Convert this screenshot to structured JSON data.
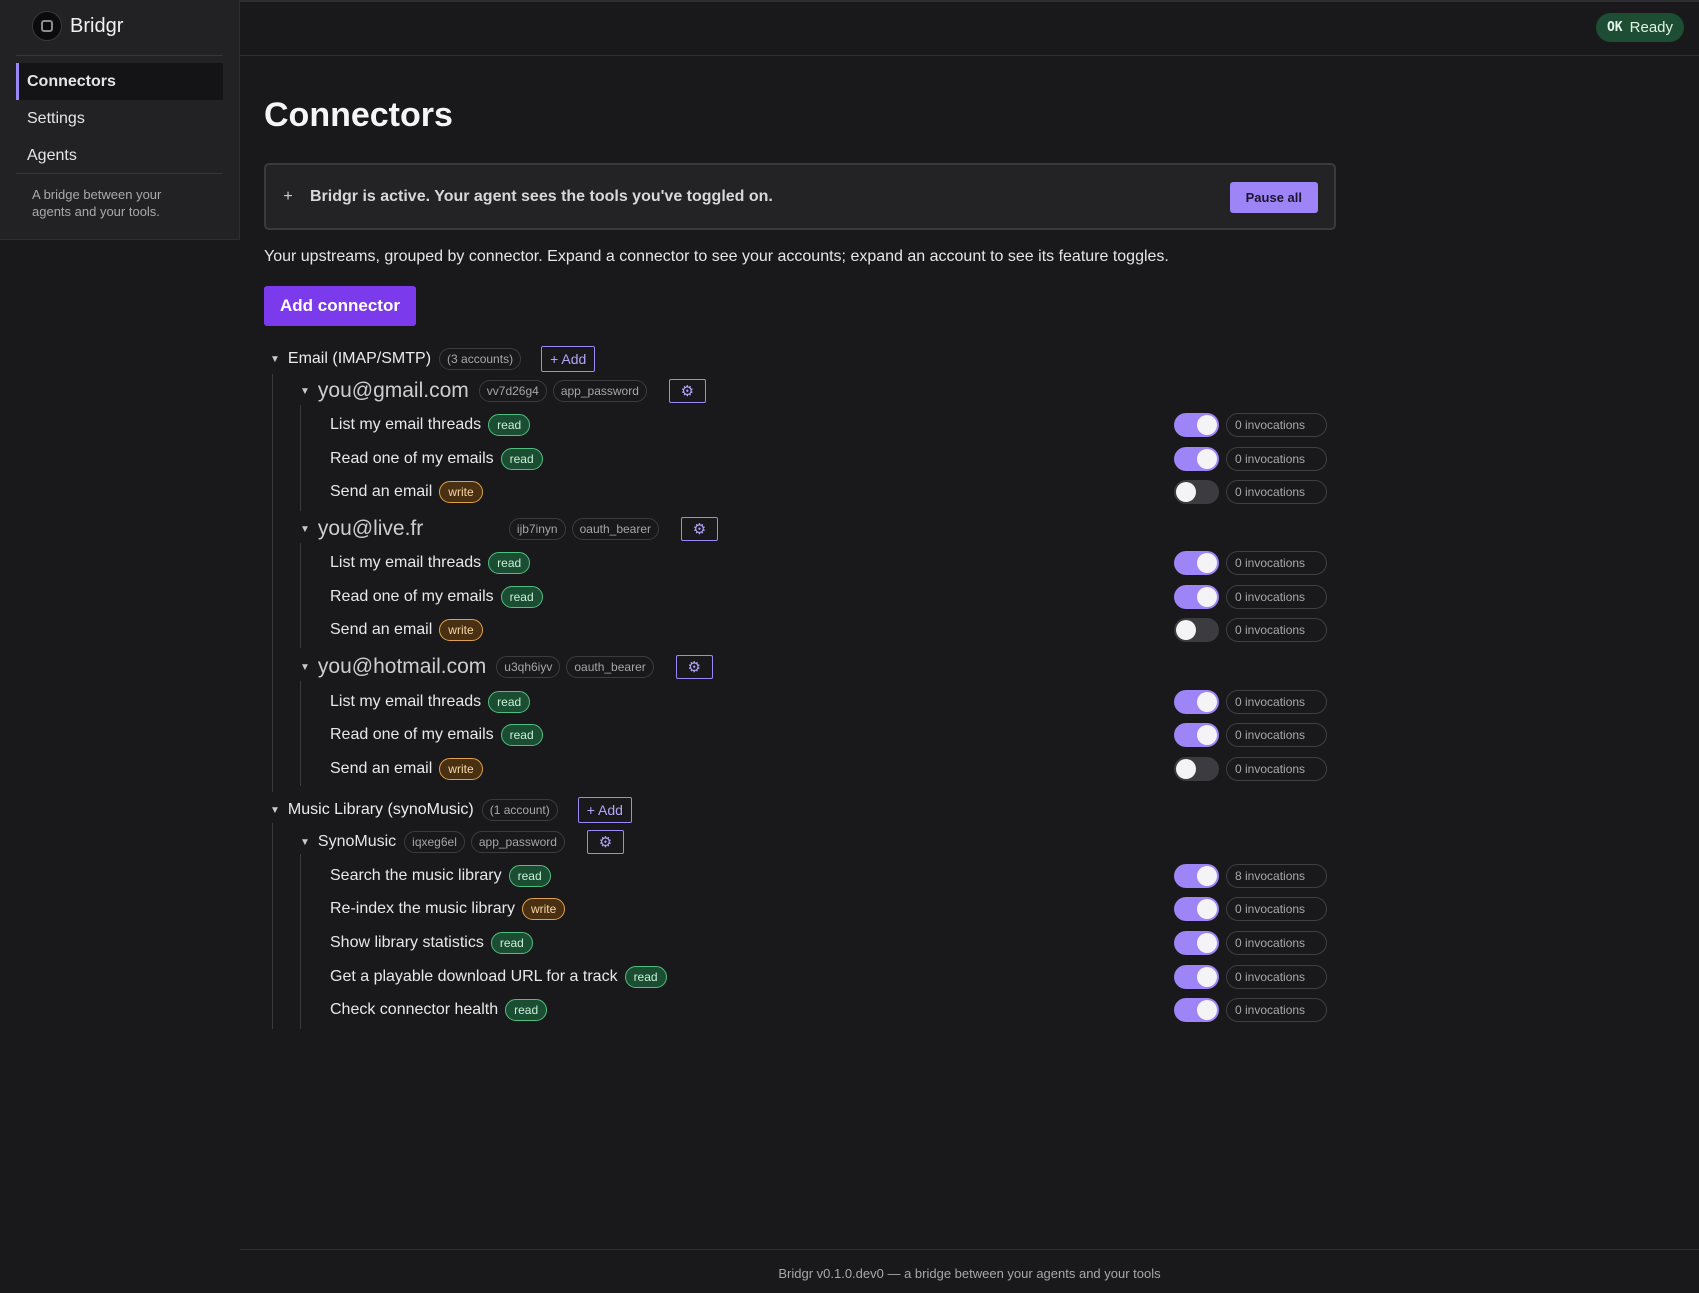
{
  "app": {
    "name": "Bridgr"
  },
  "sidebar": {
    "items": [
      {
        "label": "Connectors",
        "active": true
      },
      {
        "label": "Settings",
        "active": false
      },
      {
        "label": "Agents",
        "active": false
      }
    ],
    "tagline": "A bridge between your agents and your tools."
  },
  "status": {
    "ok": "OK",
    "label": "Ready"
  },
  "main": {
    "title": "Connectors",
    "banner": {
      "icon": "+",
      "text": "Bridgr is active. Your agent sees the tools you've toggled on.",
      "button": "Pause all"
    },
    "intro": "Your upstreams, grouped by connector. Expand a connector to see your accounts; expand an account to see its feature toggles.",
    "add_connector": "Add connector"
  },
  "connectors": [
    {
      "label": "Email (IMAP/SMTP)",
      "count": "(3 accounts)",
      "add": "+ Add",
      "accounts": [
        {
          "label": "you@gmail.com",
          "id": "vv7d26g4",
          "auth": "app_password",
          "features": [
            {
              "label": "List my email threads",
              "badge": "read",
              "enabled": true,
              "invocations": "0 invocations"
            },
            {
              "label": "Read one of my emails",
              "badge": "read",
              "enabled": true,
              "invocations": "0 invocations"
            },
            {
              "label": "Send an email",
              "badge": "write",
              "enabled": false,
              "invocations": "0 invocations"
            }
          ]
        },
        {
          "label": "you@live.fr",
          "id": "ijb7inyn",
          "auth": "oauth_bearer",
          "features": [
            {
              "label": "List my email threads",
              "badge": "read",
              "enabled": true,
              "invocations": "0 invocations"
            },
            {
              "label": "Read one of my emails",
              "badge": "read",
              "enabled": true,
              "invocations": "0 invocations"
            },
            {
              "label": "Send an email",
              "badge": "write",
              "enabled": false,
              "invocations": "0 invocations"
            }
          ]
        },
        {
          "label": "you@hotmail.com",
          "id": "u3qh6iyv",
          "auth": "oauth_bearer",
          "features": [
            {
              "label": "List my email threads",
              "badge": "read",
              "enabled": true,
              "invocations": "0 invocations"
            },
            {
              "label": "Read one of my emails",
              "badge": "read",
              "enabled": true,
              "invocations": "0 invocations"
            },
            {
              "label": "Send an email",
              "badge": "write",
              "enabled": false,
              "invocations": "0 invocations"
            }
          ]
        }
      ]
    },
    {
      "label": "Music Library (synoMusic)",
      "count": "(1 account)",
      "add": "+ Add",
      "accounts": [
        {
          "label": "SynoMusic",
          "id": "iqxeg6el",
          "auth": "app_password",
          "features": [
            {
              "label": "Search the music library",
              "badge": "read",
              "enabled": true,
              "invocations": "8 invocations"
            },
            {
              "label": "Re-index the music library",
              "badge": "write",
              "enabled": true,
              "invocations": "0 invocations"
            },
            {
              "label": "Show library statistics",
              "badge": "read",
              "enabled": true,
              "invocations": "0 invocations"
            },
            {
              "label": "Get a playable download URL for a track",
              "badge": "read",
              "enabled": true,
              "invocations": "0 invocations"
            },
            {
              "label": "Check connector health",
              "badge": "read",
              "enabled": true,
              "invocations": "0 invocations"
            }
          ]
        }
      ]
    }
  ],
  "footer": "Bridgr v0.1.0.dev0 — a bridge between your agents and your tools",
  "icons": {
    "caret": "caret-down-icon",
    "gear": "gear-icon",
    "plus": "plus-icon",
    "logo": "bridgr-logo"
  },
  "colors": {
    "accent": "#9d84f7",
    "primary_button": "#7c3aed",
    "read_badge": "#1b4d33",
    "write_badge": "#4a3013",
    "ready_pill": "#1d4d32"
  }
}
